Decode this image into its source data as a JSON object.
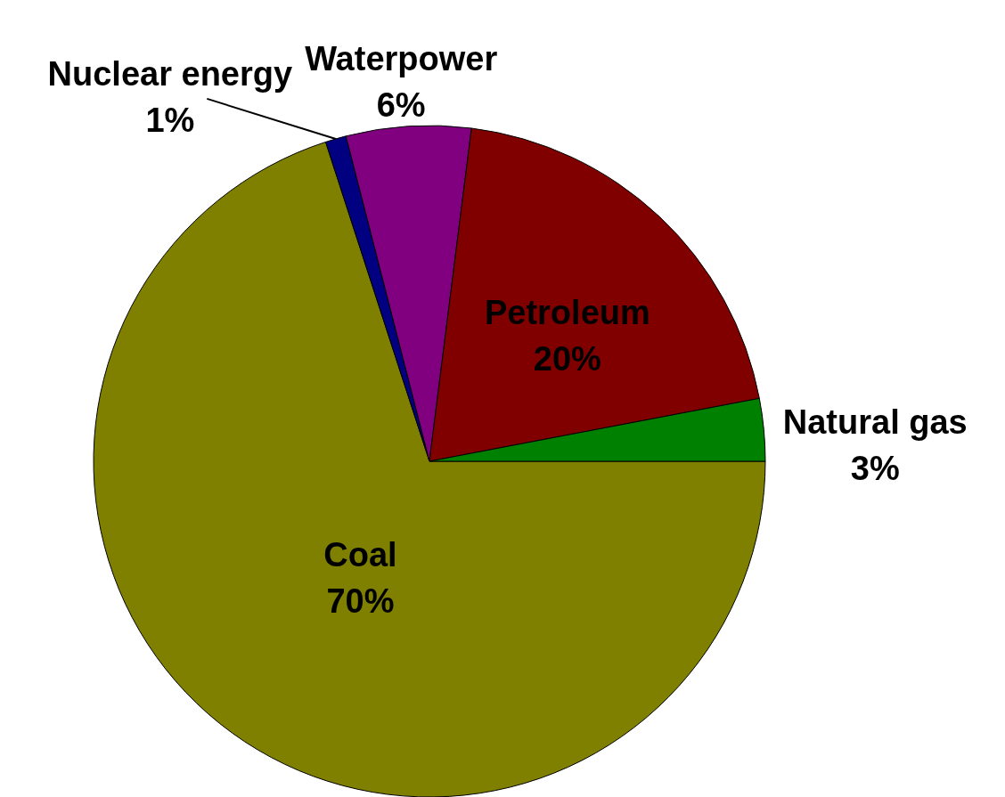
{
  "chart_data": {
    "type": "pie",
    "categories": [
      "Coal",
      "Nuclear energy",
      "Waterpower",
      "Petroleum",
      "Natural gas"
    ],
    "values": [
      70,
      1,
      6,
      20,
      3
    ],
    "value_labels": [
      "70%",
      "1%",
      "6%",
      "20%",
      "3%"
    ],
    "colors": [
      "#808000",
      "#000080",
      "#800080",
      "#800000",
      "#008000"
    ]
  }
}
